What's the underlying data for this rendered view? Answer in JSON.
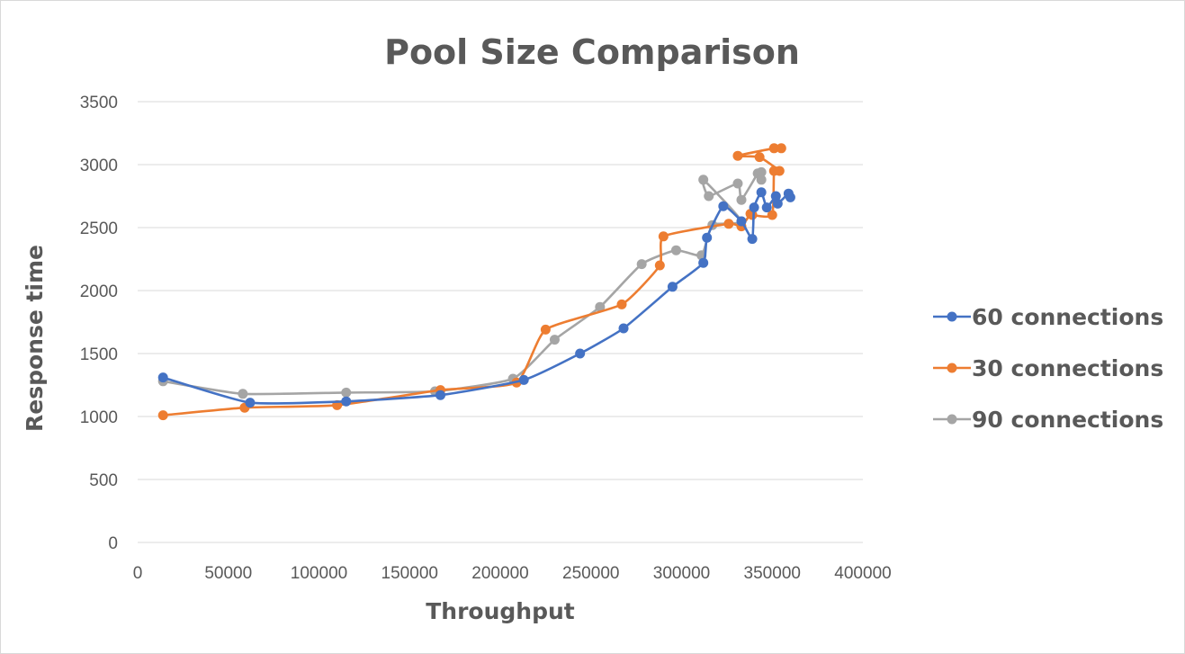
{
  "chart_data": {
    "type": "scatter",
    "title": "Pool Size Comparison",
    "xlabel": "Throughput",
    "ylabel": "Response time",
    "xlim": [
      0,
      400000
    ],
    "ylim": [
      0,
      3500
    ],
    "x_ticks": [
      0,
      50000,
      100000,
      150000,
      200000,
      250000,
      300000,
      350000,
      400000
    ],
    "y_ticks": [
      0,
      500,
      1000,
      1500,
      2000,
      2500,
      3000,
      3500
    ],
    "grid": "horizontal",
    "legend_position": "right",
    "series": [
      {
        "name": "60 connections",
        "color": "#4472c4",
        "points": [
          [
            14000,
            1310
          ],
          [
            62000,
            1110
          ],
          [
            115000,
            1120
          ],
          [
            167000,
            1170
          ],
          [
            213000,
            1290
          ],
          [
            244000,
            1500
          ],
          [
            268000,
            1700
          ],
          [
            295000,
            2030
          ],
          [
            312000,
            2220
          ],
          [
            314000,
            2420
          ],
          [
            323000,
            2670
          ],
          [
            333000,
            2550
          ],
          [
            339000,
            2410
          ],
          [
            340000,
            2660
          ],
          [
            344000,
            2780
          ],
          [
            347000,
            2660
          ],
          [
            352000,
            2750
          ],
          [
            353000,
            2690
          ],
          [
            359000,
            2770
          ],
          [
            360000,
            2740
          ]
        ]
      },
      {
        "name": "30 connections",
        "color": "#ed7d31",
        "points": [
          [
            14000,
            1010
          ],
          [
            59000,
            1070
          ],
          [
            110000,
            1090
          ],
          [
            167000,
            1210
          ],
          [
            209000,
            1270
          ],
          [
            225000,
            1690
          ],
          [
            267000,
            1890
          ],
          [
            288000,
            2200
          ],
          [
            290000,
            2430
          ],
          [
            326000,
            2530
          ],
          [
            333000,
            2510
          ],
          [
            338000,
            2610
          ],
          [
            339000,
            2600
          ],
          [
            350000,
            2600
          ],
          [
            351000,
            2950
          ],
          [
            354000,
            2950
          ],
          [
            343000,
            3060
          ],
          [
            331000,
            3070
          ],
          [
            351000,
            3130
          ],
          [
            355000,
            3130
          ]
        ]
      },
      {
        "name": "90 connections",
        "color": "#a5a5a5",
        "points": [
          [
            14000,
            1280
          ],
          [
            58000,
            1180
          ],
          [
            115000,
            1190
          ],
          [
            164000,
            1200
          ],
          [
            207000,
            1300
          ],
          [
            230000,
            1610
          ],
          [
            255000,
            1870
          ],
          [
            278000,
            2210
          ],
          [
            297000,
            2320
          ],
          [
            311000,
            2280
          ],
          [
            317000,
            2520
          ],
          [
            333000,
            2550
          ],
          [
            312000,
            2880
          ],
          [
            315000,
            2750
          ],
          [
            331000,
            2850
          ],
          [
            333000,
            2720
          ],
          [
            342000,
            2930
          ],
          [
            344000,
            2940
          ],
          [
            344000,
            2880
          ]
        ]
      }
    ]
  }
}
